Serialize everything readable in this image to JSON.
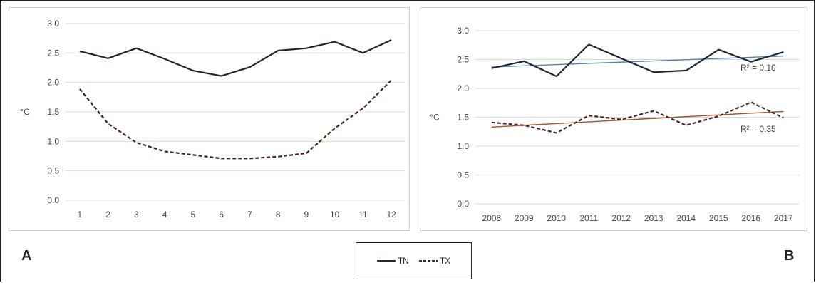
{
  "chart_data": [
    {
      "panel_label": "A",
      "type": "line",
      "ylabel": "°C",
      "xlabel": "",
      "ylim": [
        0,
        3
      ],
      "yticks": [
        "0.0",
        "0.5",
        "1.0",
        "1.5",
        "2.0",
        "2.5",
        "3.0"
      ],
      "categories": [
        "1",
        "2",
        "3",
        "4",
        "5",
        "6",
        "7",
        "8",
        "9",
        "10",
        "11",
        "12"
      ],
      "grid": true,
      "series": [
        {
          "name": "TN",
          "style": "solid",
          "color": "#1f2533",
          "values": [
            2.53,
            2.41,
            2.58,
            2.4,
            2.2,
            2.11,
            2.26,
            2.54,
            2.58,
            2.69,
            2.5,
            2.72
          ]
        },
        {
          "name": "TX",
          "style": "dashed",
          "color": "#4a2418",
          "values": [
            1.89,
            1.3,
            0.98,
            0.83,
            0.77,
            0.71,
            0.71,
            0.74,
            0.8,
            1.22,
            1.56,
            2.04
          ]
        }
      ]
    },
    {
      "panel_label": "B",
      "type": "line",
      "ylabel": "°C",
      "xlabel": "",
      "ylim": [
        0,
        3
      ],
      "yticks": [
        "0.0",
        "0.5",
        "1.0",
        "1.5",
        "2.0",
        "2.5",
        "3.0"
      ],
      "categories": [
        "2008",
        "2009",
        "2010",
        "2011",
        "2012",
        "2013",
        "2014",
        "2015",
        "2016",
        "2017"
      ],
      "grid": true,
      "series": [
        {
          "name": "TN",
          "style": "solid",
          "color": "#1f2533",
          "values": [
            2.35,
            2.47,
            2.21,
            2.76,
            2.52,
            2.28,
            2.31,
            2.67,
            2.46,
            2.63
          ]
        },
        {
          "name": "TX",
          "style": "dashed",
          "color": "#4a2418",
          "values": [
            1.41,
            1.36,
            1.23,
            1.53,
            1.46,
            1.61,
            1.36,
            1.52,
            1.76,
            1.49
          ]
        }
      ],
      "trendlines": [
        {
          "series": "TN",
          "color": "#5b7fa6",
          "start": 2.37,
          "end": 2.56,
          "label": "R² = 0.10"
        },
        {
          "series": "TX",
          "color": "#a0522d",
          "start": 1.33,
          "end": 1.6,
          "label": "R² = 0.35"
        }
      ]
    }
  ],
  "legend": [
    {
      "label": "TN",
      "style": "solid",
      "color": "#1f2533"
    },
    {
      "label": "TX",
      "style": "dashed",
      "color": "#4a2418"
    }
  ]
}
